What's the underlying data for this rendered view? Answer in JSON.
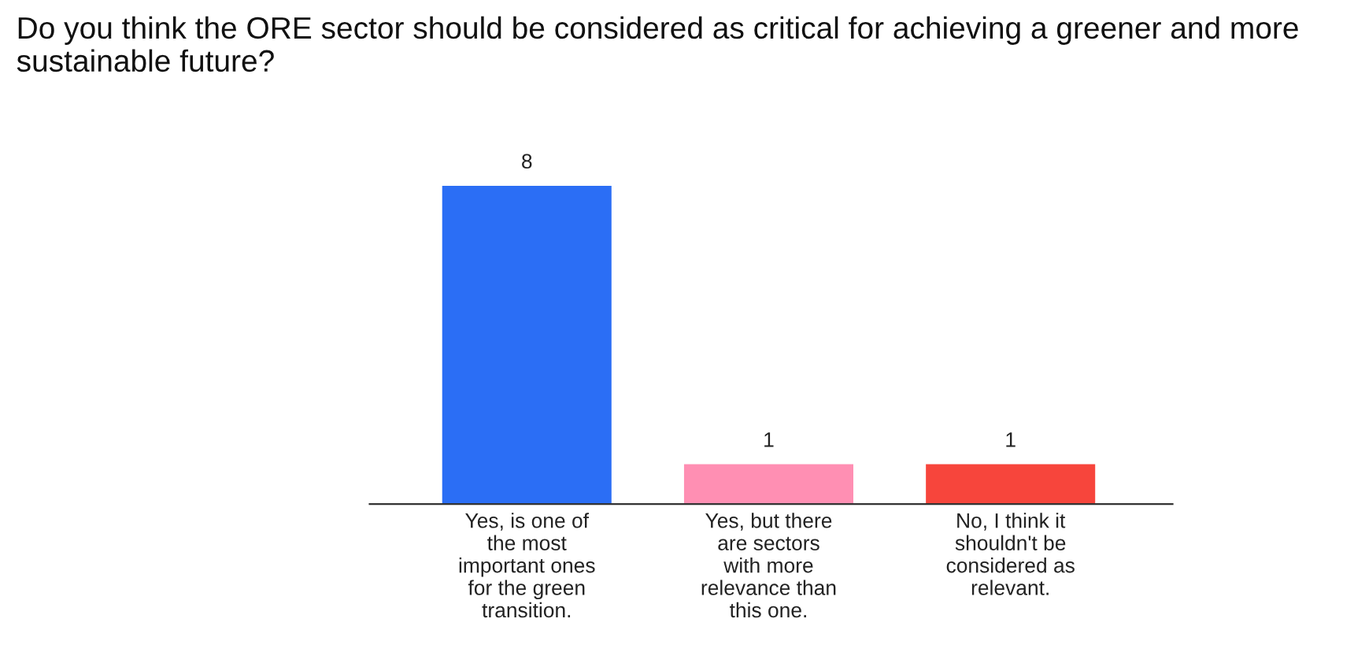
{
  "chart_data": {
    "type": "bar",
    "title": "Do you think the ORE sector should be considered as critical for achieving a greener and more sustainable future?",
    "categories": [
      "Yes, is one of\nthe most\nimportant ones\nfor the green\ntransition.",
      "Yes, but there\nare sectors\nwith more\nrelevance than\nthis one.",
      "No, I think it\nshouldn't be\nconsidered as\nrelevant."
    ],
    "values": [
      8,
      1,
      1
    ],
    "colors": [
      "#2b6ef5",
      "#ff8fb3",
      "#f7453c"
    ],
    "data_labels": true,
    "grid": false,
    "legend": false
  }
}
